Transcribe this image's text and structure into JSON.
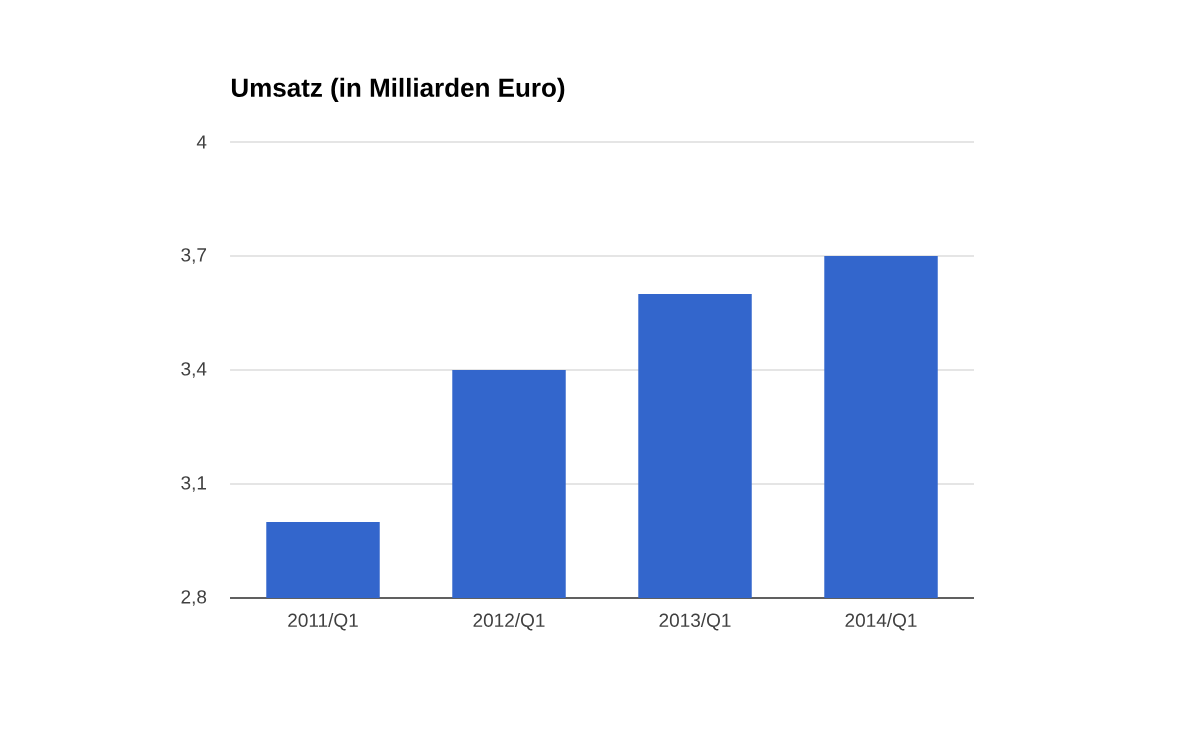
{
  "chart_data": {
    "type": "bar",
    "title": "Umsatz (in Milliarden Euro)",
    "categories": [
      "2011/Q1",
      "2012/Q1",
      "2013/Q1",
      "2014/Q1"
    ],
    "values": [
      3.0,
      3.4,
      3.6,
      3.7
    ],
    "color": "#3366cc",
    "ylim": [
      2.8,
      4
    ],
    "yticks": [
      {
        "value": 2.8,
        "label": "2,8"
      },
      {
        "value": 3.1,
        "label": "3,1"
      },
      {
        "value": 3.4,
        "label": "3,4"
      },
      {
        "value": 3.7,
        "label": "3,7"
      },
      4
    ],
    "grid": "y"
  }
}
